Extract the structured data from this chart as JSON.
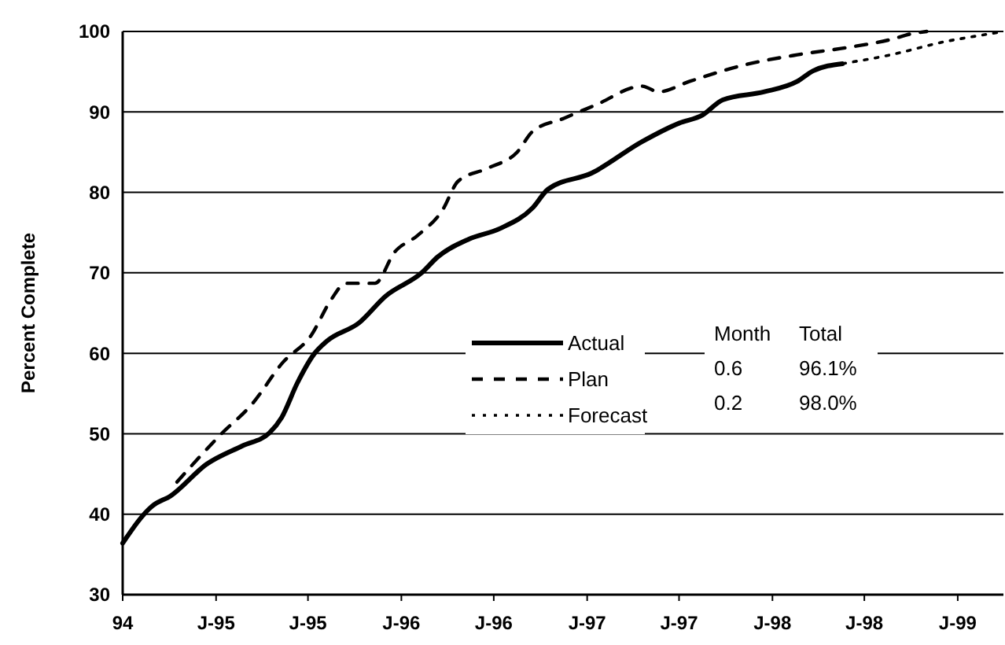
{
  "chart_data": {
    "type": "line",
    "ylabel": "Percent Complete",
    "xlim": [
      "1994-07-01",
      "1999-04-01"
    ],
    "xticks": [
      {
        "value": "1994-07-01",
        "label": "94"
      },
      {
        "value": "1995-01-01",
        "label": "J-95"
      },
      {
        "value": "1995-07-01",
        "label": "J-95"
      },
      {
        "value": "1996-01-01",
        "label": "J-96"
      },
      {
        "value": "1996-07-01",
        "label": "J-96"
      },
      {
        "value": "1997-01-01",
        "label": "J-97"
      },
      {
        "value": "1997-07-01",
        "label": "J-97"
      },
      {
        "value": "1998-01-01",
        "label": "J-98"
      },
      {
        "value": "1998-07-01",
        "label": "J-98"
      },
      {
        "value": "1999-01-01",
        "label": "J-99"
      }
    ],
    "ylim": [
      30,
      100
    ],
    "yticks": [
      30,
      40,
      50,
      60,
      70,
      80,
      90,
      100
    ],
    "grid": "y",
    "legend": "center",
    "series": [
      {
        "name": "Actual",
        "color": "#000000",
        "line_style": "solid",
        "x": [
          "1994-07-01",
          "1994-08-28",
          "1994-10-04",
          "1994-12-13",
          "1995-02-22",
          "1995-04-16",
          "1995-05-10",
          "1995-06-10",
          "1995-07-13",
          "1995-08-07",
          "1995-10-10",
          "1995-12-01",
          "1996-02-10",
          "1996-03-13",
          "1996-05-13",
          "1996-07-13",
          "1996-09-16",
          "1996-10-16",
          "1997-01-10",
          "1997-04-19",
          "1997-07-01",
          "1997-08-16",
          "1997-09-25",
          "1997-12-16",
          "1998-02-19",
          "1998-03-22",
          "1998-05-19"
        ],
        "values": [
          36.4,
          41,
          42.3,
          46.2,
          48.5,
          50.1,
          52,
          56.3,
          59.9,
          61.5,
          63.8,
          67.1,
          70,
          72,
          74.2,
          75.5,
          78.1,
          80.4,
          82.4,
          86.3,
          88.6,
          89.6,
          91.5,
          92.5,
          93.8,
          95.1,
          96
        ]
      },
      {
        "name": "Plan",
        "color": "#000000",
        "line_style": "dashed",
        "x": [
          "1994-10-16",
          "1995-01-10",
          "1995-03-13",
          "1995-05-13",
          "1995-07-07",
          "1995-08-16",
          "1995-09-13",
          "1995-11-10",
          "1995-12-19",
          "1996-02-01",
          "1996-03-22",
          "1996-04-22",
          "1996-06-19",
          "1996-08-16",
          "1996-09-16",
          "1996-11-16",
          "1997-01-19",
          "1997-04-19",
          "1997-05-22",
          "1997-07-22",
          "1997-11-04",
          "1998-02-19",
          "1998-05-28",
          "1998-08-22",
          "1998-10-01",
          "1998-11-01"
        ],
        "values": [
          44,
          49.9,
          53.7,
          58.9,
          62.2,
          66.7,
          68.7,
          68.7,
          72.6,
          74.6,
          77.8,
          81.4,
          83,
          85,
          87.6,
          89.2,
          90.9,
          93.2,
          92.5,
          93.8,
          95.8,
          97.1,
          98,
          99,
          99.7,
          100
        ]
      },
      {
        "name": "Forecast",
        "color": "#000000",
        "line_style": "dotted",
        "x": [
          "1998-05-19",
          "1998-08-22",
          "1998-12-04",
          "1999-03-04",
          "1999-04-01"
        ],
        "values": [
          96,
          97.1,
          98.7,
          99.7,
          100
        ]
      }
    ],
    "annotations": [
      "Month",
      "Total",
      "0.6",
      "96.1%",
      "0.2",
      "98.0%"
    ]
  }
}
